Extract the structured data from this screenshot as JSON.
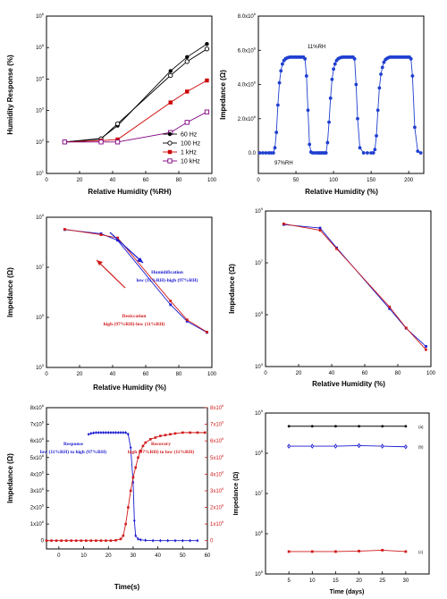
{
  "panels": [
    {
      "id": "a",
      "type": "line",
      "xlabel": "Relative Humidity (%RH)",
      "ylabel": "Humidity Response (%)",
      "xlim": [
        0,
        100
      ],
      "ylim_log10": [
        1,
        6
      ],
      "xticks": [
        "0",
        "20",
        "40",
        "60",
        "80",
        "100"
      ],
      "yticks": [
        {
          "base": "10",
          "exp": "1"
        },
        {
          "base": "10",
          "exp": "2"
        },
        {
          "base": "10",
          "exp": "3"
        },
        {
          "base": "10",
          "exp": "4"
        },
        {
          "base": "10",
          "exp": "5"
        },
        {
          "base": "10",
          "exp": "6"
        }
      ],
      "legend_position": "bottom-right",
      "series": [
        {
          "name": "60 Hz",
          "color": "#000000",
          "marker": "circle-filled",
          "x": [
            11,
            33,
            43,
            75,
            85,
            97
          ],
          "y": [
            100,
            130,
            330,
            18000,
            50000,
            130000
          ]
        },
        {
          "name": "100 Hz",
          "color": "#000000",
          "marker": "circle-open",
          "x": [
            11,
            33,
            43,
            75,
            85,
            97
          ],
          "y": [
            100,
            125,
            380,
            13000,
            36000,
            90000
          ]
        },
        {
          "name": "1 kHz",
          "color": "#cc0000",
          "marker": "square-filled",
          "x": [
            11,
            33,
            43,
            75,
            85,
            97
          ],
          "y": [
            100,
            110,
            120,
            1800,
            4000,
            9000
          ]
        },
        {
          "name": "10 kHz",
          "color": "#800080",
          "marker": "square-open",
          "x": [
            11,
            33,
            43,
            75,
            85,
            97
          ],
          "y": [
            100,
            100,
            100,
            200,
            420,
            900
          ]
        }
      ]
    },
    {
      "id": "b",
      "type": "line",
      "xlabel": "Relative Humidity (%)",
      "ylabel": "Impedance (Ω)",
      "xlim": [
        0,
        220
      ],
      "ylim": [
        -1.2,
        8
      ],
      "xticks": [
        "0",
        "50",
        "100",
        "150",
        "200"
      ],
      "yticks": [
        {
          "base": "0.0",
          "exp": ""
        },
        {
          "base": "2.0x10",
          "exp": "6"
        },
        {
          "base": "4.0x10",
          "exp": "6"
        },
        {
          "base": "6.0x10",
          "exp": "6"
        },
        {
          "base": "8.0x10",
          "exp": "6"
        }
      ],
      "annotations": [
        "11%RH",
        "97%RH"
      ],
      "series": [
        {
          "name": "",
          "color": "#1f3fd0",
          "marker": "circle-filled",
          "x": [
            2,
            6,
            10,
            14,
            17,
            20,
            22,
            24,
            26,
            28,
            30,
            32,
            34,
            36,
            38,
            40,
            42,
            44,
            46,
            48,
            50,
            52,
            54,
            56,
            58,
            60,
            62,
            64,
            66,
            68,
            70,
            72,
            75,
            78,
            80,
            82,
            84,
            86,
            88,
            90,
            92,
            94,
            96,
            98,
            100,
            102,
            104,
            106,
            108,
            110,
            112,
            114,
            116,
            118,
            120,
            122,
            124,
            126,
            128,
            130,
            132,
            135,
            140,
            145,
            150,
            153,
            155,
            157,
            159,
            161,
            163,
            165,
            167,
            169,
            171,
            173,
            175,
            177,
            179,
            181,
            183,
            185,
            187,
            189,
            191,
            193,
            195,
            197,
            199,
            201,
            203,
            205,
            208,
            212,
            216
          ],
          "y": [
            0,
            0,
            0,
            0,
            0,
            0,
            0.3,
            1.2,
            2.8,
            4.1,
            4.8,
            5.2,
            5.4,
            5.5,
            5.55,
            5.58,
            5.6,
            5.6,
            5.6,
            5.6,
            5.6,
            5.6,
            5.6,
            5.6,
            5.6,
            5.6,
            5.5,
            4.5,
            2.5,
            0.5,
            0.05,
            0,
            0,
            0,
            0,
            0,
            0,
            0,
            0,
            0,
            0.6,
            1.8,
            3.2,
            4.3,
            4.9,
            5.2,
            5.4,
            5.5,
            5.55,
            5.58,
            5.6,
            5.6,
            5.6,
            5.6,
            5.6,
            5.6,
            5.6,
            5.6,
            5.5,
            4.0,
            2.0,
            0.3,
            0,
            0,
            0,
            0,
            0.2,
            1.0,
            2.5,
            3.8,
            4.6,
            5.0,
            5.3,
            5.45,
            5.52,
            5.57,
            5.6,
            5.6,
            5.6,
            5.6,
            5.6,
            5.6,
            5.6,
            5.6,
            5.6,
            5.6,
            5.6,
            5.6,
            5.6,
            5.6,
            5.5,
            4.5,
            1.5,
            0.1,
            0
          ]
        }
      ]
    },
    {
      "id": "c",
      "type": "line",
      "xlabel": "Relative Humidity  (%)",
      "ylabel": "Impedance (Ω)",
      "xlim": [
        0,
        100
      ],
      "ylim_log10": [
        3,
        9
      ],
      "xticks": [
        "0",
        "20",
        "40",
        "60",
        "80",
        "100"
      ],
      "yticks": [
        {
          "base": "10",
          "exp": "3"
        },
        {
          "base": "10",
          "exp": "5"
        },
        {
          "base": "10",
          "exp": "7"
        },
        {
          "base": "10",
          "exp": "9"
        }
      ],
      "annotations": [
        {
          "lines": [
            "Humidification",
            "low (11%RH)-high (97%RH)"
          ],
          "color": "#1a1ad0"
        },
        {
          "lines": [
            "Desiccation",
            "high (97%RH)-low (11%RH)"
          ],
          "color": "#d01a1a"
        }
      ],
      "series": [
        {
          "name": "",
          "color": "#1a1ad0",
          "marker": "square-filled",
          "x": [
            11,
            33,
            43,
            75,
            85,
            97
          ],
          "y": [
            320000000.0,
            220000000.0,
            120000000.0,
            320000.0,
            70000.0,
            25000.0
          ]
        },
        {
          "name": "",
          "color": "#d01a1a",
          "marker": "square-filled",
          "x": [
            11,
            33,
            43,
            75,
            85,
            97
          ],
          "y": [
            330000000.0,
            200000000.0,
            150000000.0,
            450000.0,
            80000.0,
            26000.0
          ]
        }
      ]
    },
    {
      "id": "d",
      "type": "line",
      "xlabel": "Relative Humidity  (%)",
      "ylabel": "Impedance (Ω)",
      "xlim": [
        0,
        100
      ],
      "ylim_log10": [
        3,
        9
      ],
      "xticks": [
        "0",
        "20",
        "40",
        "60",
        "80",
        "100"
      ],
      "yticks": [
        {
          "base": "10",
          "exp": "3"
        },
        {
          "base": "10",
          "exp": "5"
        },
        {
          "base": "10",
          "exp": "7"
        },
        {
          "base": "10",
          "exp": "9"
        }
      ],
      "series": [
        {
          "name": "",
          "color": "#1a1ad0",
          "marker": "square-filled",
          "x": [
            11,
            33,
            43,
            75,
            85,
            97
          ],
          "y": [
            300000000.0,
            220000000.0,
            38000000.0,
            170000.0,
            30000.0,
            6000.0
          ]
        },
        {
          "name": "",
          "color": "#d01a1a",
          "marker": "square-filled",
          "x": [
            11,
            33,
            43,
            75,
            85,
            97
          ],
          "y": [
            320000000.0,
            180000000.0,
            35000000.0,
            200000.0,
            31000.0,
            4500.0
          ]
        }
      ]
    },
    {
      "id": "e",
      "type": "line",
      "xlabel": "Time(s)",
      "ylabel": "Impedance (Ω)",
      "xlim": [
        -5,
        60
      ],
      "ylim": [
        -0.5,
        8
      ],
      "xticks": [
        "0",
        "10",
        "20",
        "30",
        "40",
        "50",
        "60"
      ],
      "yticks_left": [
        {
          "base": "0",
          "exp": ""
        },
        {
          "base": "1x10",
          "exp": "6"
        },
        {
          "base": "2x10",
          "exp": "6"
        },
        {
          "base": "3x10",
          "exp": "6"
        },
        {
          "base": "4x10",
          "exp": "6"
        },
        {
          "base": "5x10",
          "exp": "6"
        },
        {
          "base": "6x10",
          "exp": "6"
        },
        {
          "base": "7x10",
          "exp": "6"
        },
        {
          "base": "8x10",
          "exp": "6"
        }
      ],
      "yticks_right": [
        {
          "base": "0",
          "exp": ""
        },
        {
          "base": "1x10",
          "exp": "6"
        },
        {
          "base": "2x10",
          "exp": "6"
        },
        {
          "base": "3x10",
          "exp": "6"
        },
        {
          "base": "4x10",
          "exp": "6"
        },
        {
          "base": "5x10",
          "exp": "6"
        },
        {
          "base": "6x10",
          "exp": "6"
        },
        {
          "base": "7x10",
          "exp": "6"
        },
        {
          "base": "8x10",
          "exp": "6"
        }
      ],
      "annotations": [
        {
          "lines": [
            "Response",
            "low (11%RH) to high (97%RH)"
          ],
          "color": "#1a1ad0"
        },
        {
          "lines": [
            "Recovery",
            "high (97%RH) to low (11%RH)"
          ],
          "color": "#d01a1a"
        }
      ],
      "series": [
        {
          "name": "",
          "color": "#1a1ad0",
          "marker": "diamond-filled",
          "x": [
            12,
            13,
            14,
            15,
            16,
            17,
            18,
            19,
            20,
            21,
            22,
            23,
            24,
            25,
            26,
            27,
            28,
            29,
            30,
            30.5,
            31,
            32,
            33,
            35,
            38,
            41,
            44,
            47,
            50,
            53,
            56
          ],
          "y": [
            6.4,
            6.45,
            6.48,
            6.5,
            6.5,
            6.5,
            6.5,
            6.5,
            6.5,
            6.5,
            6.5,
            6.5,
            6.5,
            6.5,
            6.5,
            6.5,
            6.4,
            5.6,
            3.5,
            1.2,
            0.3,
            0.1,
            0.05,
            0.02,
            0,
            0,
            0,
            0,
            0,
            0,
            0
          ]
        },
        {
          "name": "",
          "color": "#d01a1a",
          "marker": "square-filled",
          "x": [
            -5,
            -3,
            -1,
            1,
            3,
            5,
            7,
            9,
            11,
            13,
            15,
            17,
            19,
            21,
            23,
            25,
            26,
            27,
            28,
            29,
            30,
            31,
            32,
            33,
            34,
            35,
            37,
            39,
            41,
            43,
            45,
            47,
            50,
            53,
            56,
            59
          ],
          "y": [
            0,
            0,
            0,
            0,
            0,
            0,
            0,
            0,
            0,
            0,
            0,
            0,
            0,
            0,
            0.02,
            0.1,
            0.3,
            1.0,
            2.0,
            3.0,
            3.8,
            4.4,
            5.0,
            5.4,
            5.7,
            5.9,
            6.1,
            6.2,
            6.3,
            6.35,
            6.4,
            6.45,
            6.5,
            6.5,
            6.5,
            6.5
          ]
        }
      ]
    },
    {
      "id": "f",
      "type": "line",
      "xlabel": "Time (days)",
      "ylabel": "Impedance (Ω)",
      "xlim": [
        0,
        35
      ],
      "ylim_log10": [
        5,
        9
      ],
      "xticks": [
        "5",
        "10",
        "15",
        "20",
        "25",
        "30"
      ],
      "yticks": [
        {
          "base": "10",
          "exp": "5"
        },
        {
          "base": "10",
          "exp": "6"
        },
        {
          "base": "10",
          "exp": "7"
        },
        {
          "base": "10",
          "exp": "8"
        },
        {
          "base": "10",
          "exp": "9"
        }
      ],
      "series": [
        {
          "name": "(a)",
          "color": "#000000",
          "marker": "circle-filled",
          "x": [
            5,
            10,
            15,
            20,
            25,
            30
          ],
          "y": [
            470000000.0,
            470000000.0,
            470000000.0,
            470000000.0,
            470000000.0,
            470000000.0
          ]
        },
        {
          "name": "(b)",
          "color": "#1a1ad0",
          "marker": "diamond-open",
          "x": [
            5,
            10,
            15,
            20,
            25,
            30
          ],
          "y": [
            150000000.0,
            150000000.0,
            150000000.0,
            155000000.0,
            150000000.0,
            145000000.0
          ]
        },
        {
          "name": "(c)",
          "color": "#d01a1a",
          "marker": "square-filled",
          "x": [
            5,
            10,
            15,
            20,
            25,
            30
          ],
          "y": [
            360000.0,
            360000.0,
            360000.0,
            370000.0,
            390000.0,
            360000.0
          ]
        }
      ]
    }
  ]
}
